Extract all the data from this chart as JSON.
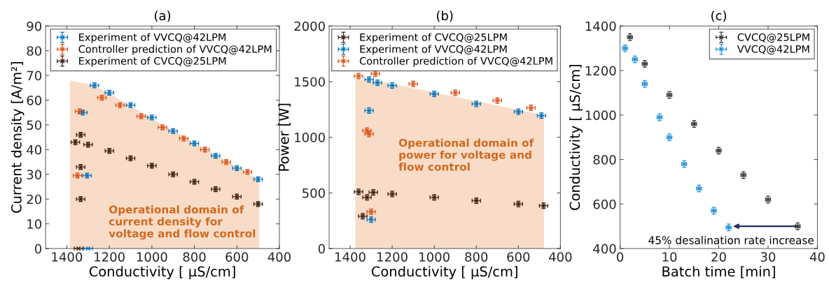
{
  "chart_data": [
    {
      "type": "scatter",
      "title": "(a)",
      "xlabel": "Conductivity [ μS/cm]",
      "ylabel": "Current density [A/m²]",
      "xlim": [
        1500,
        400
      ],
      "xticks": [
        1400,
        1200,
        1000,
        800,
        600,
        400
      ],
      "ylim": [
        0,
        90
      ],
      "yticks": [
        0,
        10,
        20,
        30,
        40,
        50,
        60,
        70,
        80,
        90
      ],
      "legend": "top right",
      "grid": false,
      "annotations": [
        "Operational domain of\ncurrent density for\nvoltage and flow control"
      ],
      "series": [
        {
          "type": "area",
          "color": "#f9dcc8",
          "x": [
            1385,
            1270,
            500,
            495
          ],
          "values": [
            68,
            66,
            28,
            28
          ]
        },
        {
          "name": "Experiment of VVCQ@42LPM",
          "color": "#0072bd",
          "marker": "cross",
          "x": [
            1300,
            1305,
            1325,
            1270,
            1200,
            1100,
            1000,
            900,
            800,
            700,
            600,
            500
          ],
          "values": [
            0,
            29.5,
            55,
            66,
            63,
            58,
            53,
            47.5,
            42.5,
            37.5,
            32.5,
            28
          ],
          "errors": [
            null,
            1,
            1,
            1,
            1,
            1,
            1,
            1,
            1,
            1,
            1,
            1
          ],
          "xerrors": [
            20,
            20,
            20,
            20,
            20,
            20,
            20,
            20,
            20,
            20,
            20,
            20
          ]
        },
        {
          "name": "Controller prediction of VVCQ@42LPM",
          "color": "#d95319",
          "marker": "cross",
          "x": [
            1350,
            1340,
            1235,
            1150,
            1050,
            950,
            850,
            750,
            650,
            550
          ],
          "values": [
            29.5,
            55.5,
            61,
            58,
            53.5,
            49,
            44.5,
            40,
            35,
            31
          ],
          "errors": [
            1,
            1,
            1,
            1,
            1,
            1,
            1,
            1,
            1,
            1
          ],
          "xerrors": [
            20,
            20,
            20,
            20,
            20,
            20,
            20,
            20,
            20,
            20
          ]
        },
        {
          "name": "Experiment of CVCQ@25LPM",
          "color": "#3b1a0c",
          "marker": "cross",
          "x": [
            1345,
            1335,
            1335,
            1335,
            1360,
            1300,
            1200,
            1100,
            1000,
            900,
            800,
            700,
            600,
            500
          ],
          "values": [
            0,
            20,
            33,
            46,
            43,
            42,
            39.5,
            36.5,
            33.5,
            30,
            27,
            24,
            21,
            18
          ],
          "errors": [
            null,
            1,
            1,
            1,
            1,
            1,
            1,
            1,
            1,
            1,
            1,
            1,
            1,
            1
          ],
          "xerrors": [
            20,
            20,
            20,
            20,
            20,
            20,
            20,
            20,
            20,
            20,
            20,
            20,
            20,
            20
          ]
        }
      ]
    },
    {
      "type": "scatter",
      "title": "(b)",
      "xlabel": "Conductivity [ μS/cm]",
      "ylabel": "Power [W]",
      "xlim": [
        1500,
        400
      ],
      "xticks": [
        1400,
        1200,
        1000,
        800,
        600,
        400
      ],
      "ylim": [
        0,
        2000
      ],
      "yticks": [
        0,
        500,
        1000,
        1500,
        2000
      ],
      "legend": "top right",
      "grid": false,
      "annotations": [
        "Operational domain of\npower for voltage and\nflow control"
      ],
      "series": [
        {
          "type": "area",
          "color": "#f9dcc8",
          "x": [
            1375,
            1250,
            480,
            478
          ],
          "values": [
            1520,
            1500,
            1200,
            1200
          ]
        },
        {
          "name": "Experiment of CVCQ@25LPM",
          "color": "#3b1a0c",
          "marker": "cross",
          "x": [
            1340,
            1320,
            1360,
            1290,
            1200,
            1000,
            800,
            600,
            480
          ],
          "values": [
            290,
            460,
            510,
            505,
            490,
            460,
            430,
            400,
            385
          ],
          "errors": [
            25,
            25,
            25,
            25,
            25,
            25,
            25,
            25,
            25
          ],
          "xerrors": [
            20,
            20,
            20,
            20,
            20,
            20,
            20,
            20,
            20
          ]
        },
        {
          "name": "Experiment of VVCQ@42LPM",
          "color": "#0072bd",
          "marker": "cross",
          "x": [
            1300,
            1310,
            1310,
            1270,
            1200,
            1000,
            800,
            600,
            490
          ],
          "values": [
            260,
            1240,
            1520,
            1490,
            1465,
            1390,
            1300,
            1230,
            1195
          ],
          "errors": [
            25,
            25,
            25,
            25,
            25,
            25,
            25,
            25,
            25
          ],
          "xerrors": [
            20,
            20,
            20,
            20,
            20,
            20,
            20,
            20,
            20
          ]
        },
        {
          "name": "Controller prediction of VVCQ@42LPM",
          "color": "#d95319",
          "marker": "cross",
          "x": [
            1300,
            1320,
            1310,
            1280,
            1360,
            1100,
            900,
            700,
            540
          ],
          "values": [
            330,
            1060,
            1030,
            1570,
            1550,
            1480,
            1400,
            1330,
            1265
          ],
          "errors": [
            25,
            25,
            25,
            25,
            25,
            25,
            25,
            25,
            25
          ],
          "xerrors": [
            20,
            20,
            20,
            20,
            20,
            20,
            20,
            20,
            20
          ]
        }
      ]
    },
    {
      "type": "scatter",
      "title": "(c)",
      "xlabel": "Batch time [min]",
      "ylabel": "Conductivity [ μS/cm]",
      "xlim": [
        0,
        40
      ],
      "xticks": [
        0,
        10,
        20,
        30,
        40
      ],
      "ylim": [
        400,
        1400
      ],
      "yticks": [
        400,
        600,
        800,
        1000,
        1200,
        1400
      ],
      "legend": "top right",
      "grid": false,
      "annotations": [
        {
          "text": "45% desalination rate increase",
          "x": 22.5,
          "y": 500
        }
      ],
      "series": [
        {
          "name": "CVCQ@25LPM",
          "color": "#333333",
          "marker": "cross",
          "x": [
            2,
            5,
            10,
            15,
            20,
            25,
            30,
            36
          ],
          "values": [
            1350,
            1230,
            1090,
            960,
            840,
            730,
            620,
            500
          ],
          "errors": [
            15,
            15,
            15,
            15,
            15,
            15,
            15,
            15
          ],
          "xerrors": [
            0.5,
            0.5,
            0.5,
            0.5,
            0.5,
            0.5,
            0.5,
            0.5
          ]
        },
        {
          "name": "VVCQ@42LPM",
          "color": "#1f8fd6",
          "marker": "cross",
          "x": [
            1,
            3,
            5,
            8,
            10,
            13,
            16,
            19,
            22
          ],
          "values": [
            1300,
            1250,
            1140,
            990,
            900,
            780,
            670,
            570,
            495
          ],
          "errors": [
            15,
            15,
            15,
            15,
            15,
            15,
            15,
            15,
            15
          ],
          "xerrors": [
            0.5,
            0.5,
            0.5,
            0.5,
            0.5,
            0.5,
            0.5,
            0.5,
            0.5
          ]
        }
      ]
    }
  ]
}
